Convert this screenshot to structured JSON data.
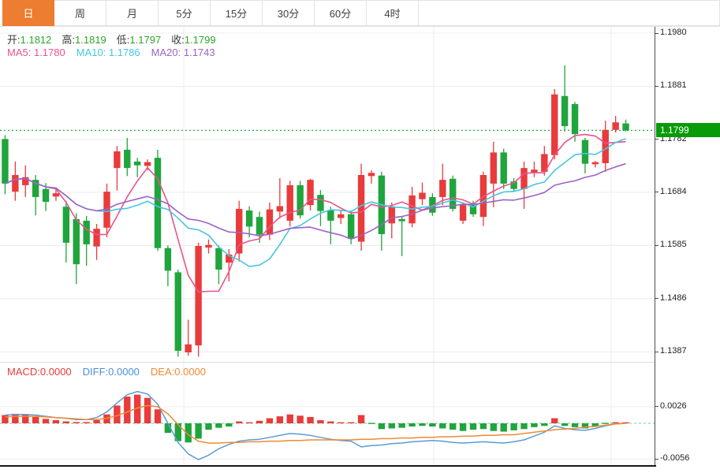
{
  "toolbar": {
    "tabs": [
      {
        "label": "日",
        "active": true
      },
      {
        "label": "周",
        "active": false
      },
      {
        "label": "月",
        "active": false
      },
      {
        "label": "5分",
        "active": false
      },
      {
        "label": "15分",
        "active": false
      },
      {
        "label": "30分",
        "active": false
      },
      {
        "label": "60分",
        "active": false
      },
      {
        "label": "4时",
        "active": false
      }
    ]
  },
  "legend": {
    "open_label": "开:",
    "open": "1.1812",
    "high_label": "高:",
    "high": "1.1819",
    "low_label": "低:",
    "low": "1.1797",
    "close_label": "收:",
    "close": "1.1799",
    "ma5": "MA5: 1.1780",
    "ma10": "MA10: 1.1786",
    "ma20": "MA20: 1.1743"
  },
  "macd_legend": {
    "macd": "MACD:0.0000",
    "diff": "DIFF:0.0000",
    "dea": "DEA:0.0000"
  },
  "price_axis": {
    "ticks": [
      "1.1980",
      "1.1881",
      "1.1782",
      "1.1684",
      "1.1585",
      "1.1486",
      "1.1387"
    ],
    "current_price_label": "1.1799"
  },
  "macd_axis": {
    "ticks": [
      "0.0026",
      "-0.0056"
    ]
  },
  "colors": {
    "accent_orange": "#ed7d31",
    "up_red": "#e93b3b",
    "down_green": "#1fa53c",
    "ma5_pink": "#e8548c",
    "ma10_cyan": "#45c6e2",
    "ma20_purple": "#9d62c4",
    "price_tag_green": "#089b08",
    "value_green": "#2ca52c",
    "diff_blue": "#5b9bd5",
    "dea_orange": "#ef8b33",
    "grid": "#ececec",
    "dotted_price_line": "#2aa84f",
    "macd_zero_dash": "#8fd4a8"
  },
  "chart_data": {
    "type": "candlestick+macd",
    "period_selected": "日",
    "price_axis_ticks": [
      1.198,
      1.1881,
      1.1782,
      1.1684,
      1.1585,
      1.1486,
      1.1387
    ],
    "current_price": 1.1799,
    "ohlc_display": {
      "open": 1.1812,
      "high": 1.1819,
      "low": 1.1797,
      "close": 1.1799
    },
    "ma_display": {
      "ma5": 1.178,
      "ma10": 1.1786,
      "ma20": 1.1743
    },
    "up_means": "red = rising candle, green = falling candle (CN convention)",
    "candles_ohlc": [
      [
        1.1783,
        1.179,
        1.168,
        1.17
      ],
      [
        1.1685,
        1.1741,
        1.1668,
        1.1716
      ],
      [
        1.1697,
        1.1734,
        1.1675,
        1.1712
      ],
      [
        1.1707,
        1.1716,
        1.1641,
        1.1675
      ],
      [
        1.169,
        1.1701,
        1.1649,
        1.1666
      ],
      [
        1.1676,
        1.169,
        1.1668,
        1.1682
      ],
      [
        1.1657,
        1.1668,
        1.1553,
        1.159
      ],
      [
        1.1634,
        1.1645,
        1.1513,
        1.155
      ],
      [
        1.1631,
        1.164,
        1.1547,
        1.1587
      ],
      [
        1.1583,
        1.1625,
        1.1558,
        1.1616
      ],
      [
        1.1618,
        1.17,
        1.16,
        1.1685
      ],
      [
        1.1729,
        1.177,
        1.1687,
        1.176
      ],
      [
        1.1763,
        1.1785,
        1.1714,
        1.1729
      ],
      [
        1.1741,
        1.1748,
        1.1712,
        1.1734
      ],
      [
        1.1733,
        1.1745,
        1.1725,
        1.174
      ],
      [
        1.1748,
        1.1763,
        1.1575,
        1.158
      ],
      [
        1.158,
        1.1585,
        1.1509,
        1.1538
      ],
      [
        1.1535,
        1.154,
        1.1378,
        1.1389
      ],
      [
        1.1386,
        1.1447,
        1.138,
        1.1401
      ],
      [
        1.1399,
        1.159,
        1.1378,
        1.1584
      ],
      [
        1.1581,
        1.1596,
        1.157,
        1.1586
      ],
      [
        1.158,
        1.1585,
        1.1513,
        1.154
      ],
      [
        1.1553,
        1.1578,
        1.1518,
        1.1568
      ],
      [
        1.157,
        1.1668,
        1.1555,
        1.1653
      ],
      [
        1.165,
        1.1658,
        1.16,
        1.162
      ],
      [
        1.1638,
        1.1648,
        1.159,
        1.1605
      ],
      [
        1.1605,
        1.1665,
        1.1595,
        1.1652
      ],
      [
        1.1648,
        1.171,
        1.1635,
        1.1658
      ],
      [
        1.1631,
        1.1705,
        1.162,
        1.1697
      ],
      [
        1.1697,
        1.1705,
        1.1635,
        1.1641
      ],
      [
        1.166,
        1.1709,
        1.165,
        1.1707
      ],
      [
        1.1679,
        1.1688,
        1.1621,
        1.1649
      ],
      [
        1.165,
        1.1657,
        1.1587,
        1.1631
      ],
      [
        1.1636,
        1.165,
        1.1625,
        1.1643
      ],
      [
        1.1643,
        1.165,
        1.1587,
        1.1597
      ],
      [
        1.1592,
        1.1737,
        1.1575,
        1.1716
      ],
      [
        1.1714,
        1.1725,
        1.17,
        1.172
      ],
      [
        1.1715,
        1.1722,
        1.1575,
        1.1606
      ],
      [
        1.1626,
        1.1665,
        1.1598,
        1.1657
      ],
      [
        1.1634,
        1.164,
        1.1565,
        1.163
      ],
      [
        1.1626,
        1.1694,
        1.1619,
        1.1678
      ],
      [
        1.1671,
        1.1702,
        1.166,
        1.1683
      ],
      [
        1.1675,
        1.1682,
        1.164,
        1.1646
      ],
      [
        1.1675,
        1.1737,
        1.166,
        1.1707
      ],
      [
        1.1709,
        1.1715,
        1.1648,
        1.1653
      ],
      [
        1.1631,
        1.1665,
        1.1625,
        1.166
      ],
      [
        1.166,
        1.1668,
        1.1638,
        1.1643
      ],
      [
        1.1638,
        1.1722,
        1.1621,
        1.1716
      ],
      [
        1.17,
        1.1778,
        1.1656,
        1.1758
      ],
      [
        1.1758,
        1.1765,
        1.169,
        1.17
      ],
      [
        1.1704,
        1.171,
        1.1686,
        1.169
      ],
      [
        1.169,
        1.1741,
        1.1653,
        1.1729
      ],
      [
        1.172,
        1.1741,
        1.1712,
        1.1726
      ],
      [
        1.1722,
        1.177,
        1.1715,
        1.1755
      ],
      [
        1.1753,
        1.1876,
        1.1745,
        1.1866
      ],
      [
        1.1863,
        1.192,
        1.1797,
        1.1807
      ],
      [
        1.1848,
        1.1852,
        1.1778,
        1.1792
      ],
      [
        1.1781,
        1.1785,
        1.1719,
        1.1737
      ],
      [
        1.1736,
        1.1742,
        1.173,
        1.174
      ],
      [
        1.1738,
        1.1817,
        1.1722,
        1.18
      ],
      [
        1.18,
        1.1826,
        1.1795,
        1.1814
      ],
      [
        1.1812,
        1.1819,
        1.1797,
        1.1799
      ]
    ],
    "ma_periods": [
      5,
      10,
      20
    ],
    "macd": {
      "axis_ticks": [
        0.0026,
        -0.0056
      ],
      "hist": [
        0.0013,
        0.0015,
        0.0013,
        0.001,
        0.0007,
        0.0005,
        0.0003,
        0.0002,
        0.0002,
        0.0005,
        0.0014,
        0.0028,
        0.0042,
        0.0045,
        0.004,
        0.0022,
        -0.0015,
        -0.0028,
        -0.003,
        -0.0024,
        -0.001,
        -0.0007,
        -0.0005,
        0.0003,
        0.0001,
        0.0004,
        0.0008,
        0.0011,
        0.0014,
        0.0012,
        0.001,
        0.0005,
        0.0003,
        0.0001,
        0.0,
        0.0013,
        -0.0001,
        -0.0009,
        -0.0008,
        -0.0007,
        -0.0005,
        -0.0004,
        -0.0005,
        -0.0008,
        -0.001,
        -0.0012,
        -0.001,
        -0.0009,
        -0.0012,
        -0.0013,
        -0.0011,
        -0.0009,
        -0.0006,
        -0.0004,
        0.0008,
        -0.0004,
        -0.0006,
        -0.0008,
        -0.0005,
        -0.0001,
        0.0,
        0.0
      ],
      "diff": [
        0.0013,
        0.0014,
        0.0014,
        0.0013,
        0.0011,
        0.0009,
        0.0008,
        0.0006,
        0.0006,
        0.0009,
        0.0018,
        0.0032,
        0.0045,
        0.005,
        0.0046,
        0.003,
        0.0,
        -0.003,
        -0.0048,
        -0.0057,
        -0.005,
        -0.004,
        -0.0033,
        -0.0028,
        -0.0026,
        -0.0025,
        -0.0022,
        -0.0019,
        -0.0016,
        -0.0017,
        -0.0019,
        -0.0022,
        -0.0025,
        -0.0027,
        -0.0028,
        -0.0037,
        -0.0035,
        -0.0034,
        -0.0032,
        -0.0031,
        -0.0029,
        -0.0028,
        -0.0027,
        -0.0028,
        -0.003,
        -0.0031,
        -0.003,
        -0.0029,
        -0.003,
        -0.0031,
        -0.0029,
        -0.0026,
        -0.002,
        -0.0014,
        -0.0004,
        -0.0008,
        -0.001,
        -0.0011,
        -0.0008,
        -0.0004,
        -0.0001,
        0.0
      ],
      "dea": [
        0.001,
        0.0011,
        0.0011,
        0.0011,
        0.001,
        0.0009,
        0.0008,
        0.0007,
        0.0006,
        0.0006,
        0.0008,
        0.0012,
        0.0018,
        0.0024,
        0.0028,
        0.0026,
        0.0015,
        -0.0002,
        -0.0018,
        -0.0028,
        -0.0031,
        -0.0031,
        -0.003,
        -0.003,
        -0.0029,
        -0.0029,
        -0.0028,
        -0.0028,
        -0.0027,
        -0.0027,
        -0.0026,
        -0.0026,
        -0.0026,
        -0.0026,
        -0.0026,
        -0.0025,
        -0.0025,
        -0.0024,
        -0.0024,
        -0.0023,
        -0.0023,
        -0.0022,
        -0.0022,
        -0.0021,
        -0.0021,
        -0.002,
        -0.002,
        -0.0019,
        -0.0019,
        -0.0018,
        -0.0018,
        -0.0016,
        -0.0014,
        -0.0012,
        -0.001,
        -0.0009,
        -0.0008,
        -0.0006,
        -0.0005,
        -0.0003,
        -0.0001,
        0.0
      ]
    }
  }
}
